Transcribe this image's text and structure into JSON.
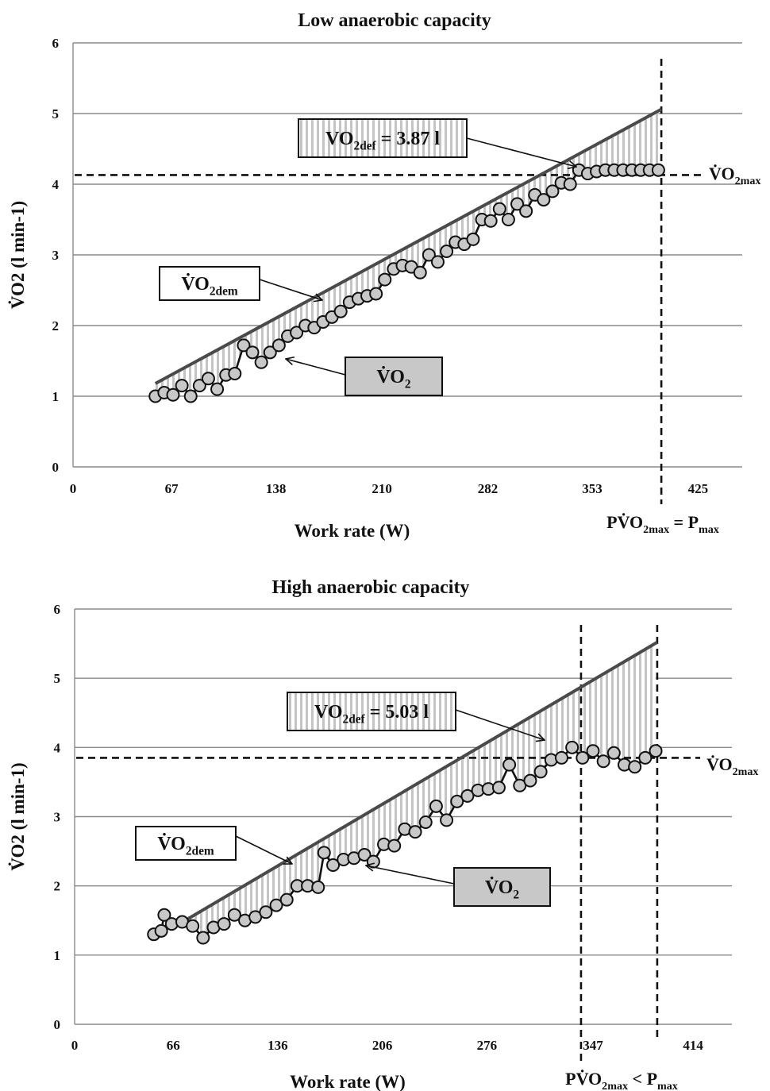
{
  "chart_data": [
    {
      "type": "line",
      "title": "Low anaerobic capacity",
      "xlabel": "Work rate (W)",
      "ylabel": "V̇O2 (l min-1)",
      "ylim": [
        0,
        6
      ],
      "y_ticks": [
        "0",
        "1",
        "2",
        "3",
        "4",
        "5",
        "6"
      ],
      "x_ticks": [
        "0",
        "67",
        "138",
        "210",
        "282",
        "353",
        "425"
      ],
      "x_tick_values": [
        0,
        67,
        138,
        210,
        282,
        353,
        425
      ],
      "xlim": [
        0,
        455
      ],
      "grid": true,
      "vo2max": 4.13,
      "p_vo2max_x": 400,
      "pmax_x": 400,
      "demand_line": {
        "name": "V̇O2dem",
        "x": [
          56,
          400
        ],
        "y": [
          1.18,
          5.06
        ]
      },
      "series": [
        {
          "name": "V̇O2",
          "x": [
            56,
            62,
            68,
            74,
            80,
            86,
            92,
            98,
            104,
            110,
            116,
            122,
            128,
            134,
            140,
            146,
            152,
            158,
            164,
            170,
            176,
            182,
            188,
            194,
            200,
            206,
            212,
            218,
            224,
            230,
            236,
            242,
            248,
            254,
            260,
            266,
            272,
            278,
            284,
            290,
            296,
            302,
            308,
            314,
            320,
            326,
            332,
            338,
            344,
            350,
            356,
            362,
            368,
            374,
            380,
            386,
            392,
            398
          ],
          "y": [
            1.0,
            1.05,
            1.02,
            1.15,
            1.0,
            1.15,
            1.25,
            1.1,
            1.3,
            1.32,
            1.72,
            1.62,
            1.48,
            1.62,
            1.72,
            1.85,
            1.9,
            2.0,
            1.97,
            2.05,
            2.12,
            2.2,
            2.33,
            2.38,
            2.42,
            2.45,
            2.65,
            2.8,
            2.85,
            2.83,
            2.75,
            3.0,
            2.9,
            3.05,
            3.18,
            3.15,
            3.22,
            3.5,
            3.48,
            3.65,
            3.5,
            3.72,
            3.62,
            3.85,
            3.78,
            3.9,
            4.02,
            4.0,
            4.2,
            4.15,
            4.18,
            4.2,
            4.2,
            4.2,
            4.2,
            4.2,
            4.2,
            4.2
          ]
        }
      ],
      "labels": {
        "deficit_main": "VO",
        "deficit_sub": "2def",
        "deficit_value": " = 3.87 l",
        "dem_main": "V̇O",
        "dem_sub": "2dem",
        "vo2_main": "V̇O",
        "vo2_sub": "2",
        "vo2max_main": "V̇O",
        "vo2max_sub": "2max",
        "p_label_pre": "PV̇O",
        "p_label_sub": "2max",
        "p_label_mid": " = P",
        "p_label_sub2": "max"
      }
    },
    {
      "type": "line",
      "title": "High anaerobic capacity",
      "xlabel": "Work rate (W)",
      "ylabel": "V̇O2 (l min-1)",
      "ylim": [
        0,
        6
      ],
      "y_ticks": [
        "0",
        "1",
        "2",
        "3",
        "4",
        "5",
        "6"
      ],
      "x_ticks": [
        "0",
        "66",
        "136",
        "206",
        "276",
        "347",
        "414"
      ],
      "x_tick_values": [
        0,
        66,
        136,
        206,
        276,
        347,
        414
      ],
      "xlim": [
        0,
        440
      ],
      "grid": true,
      "vo2max": 3.85,
      "p_vo2max_x": 339,
      "pmax_x": 390,
      "demand_line": {
        "name": "V̇O2dem",
        "x": [
          74,
          390
        ],
        "y": [
          1.5,
          5.52
        ]
      },
      "series": [
        {
          "name": "V̇O2",
          "x": [
            53,
            58,
            60,
            65,
            72,
            79,
            86,
            93,
            100,
            107,
            114,
            121,
            128,
            135,
            142,
            149,
            156,
            163,
            167,
            173,
            180,
            187,
            194,
            200,
            207,
            214,
            221,
            228,
            235,
            242,
            249,
            256,
            263,
            270,
            277,
            284,
            291,
            298,
            305,
            312,
            319,
            326,
            333,
            340,
            347,
            354,
            361,
            368,
            375,
            382,
            389
          ],
          "y": [
            1.3,
            1.35,
            1.58,
            1.45,
            1.48,
            1.42,
            1.25,
            1.4,
            1.45,
            1.58,
            1.5,
            1.55,
            1.62,
            1.72,
            1.8,
            2.0,
            2.0,
            1.98,
            2.48,
            2.3,
            2.38,
            2.4,
            2.45,
            2.35,
            2.6,
            2.58,
            2.82,
            2.78,
            2.92,
            3.15,
            2.95,
            3.22,
            3.3,
            3.38,
            3.4,
            3.42,
            3.75,
            3.45,
            3.52,
            3.65,
            3.82,
            3.85,
            4.0,
            3.85,
            3.95,
            3.8,
            3.92,
            3.75,
            3.72,
            3.85,
            3.95
          ]
        }
      ],
      "labels": {
        "deficit_main": "VO",
        "deficit_sub": "2def",
        "deficit_value": " = 5.03 l",
        "dem_main": "V̇O",
        "dem_sub": "2dem",
        "vo2_main": "V̇O",
        "vo2_sub": "2",
        "vo2max_main": "V̇O",
        "vo2max_sub": "2max",
        "p_label_pre": "PV̇O",
        "p_label_sub": "2max",
        "p_label_mid": " < P",
        "p_label_sub2": "max"
      }
    }
  ]
}
